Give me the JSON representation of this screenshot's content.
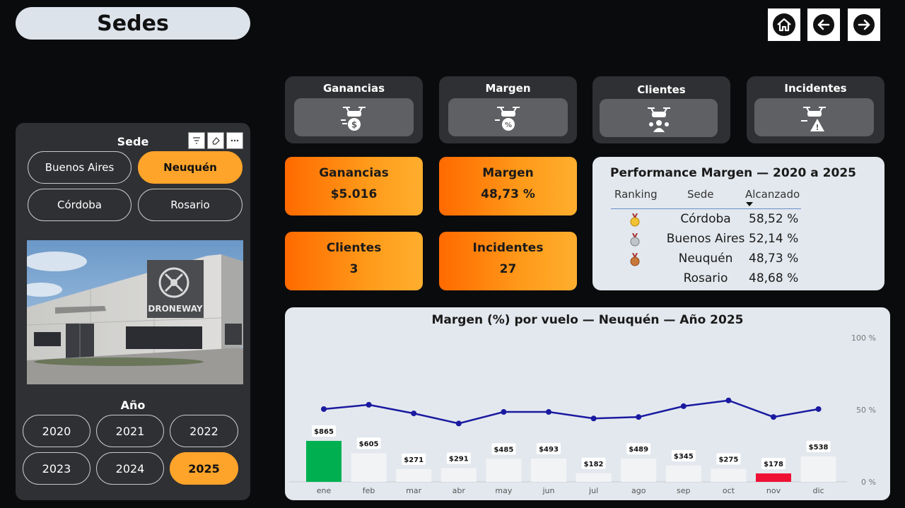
{
  "page_title": "Sedes",
  "kpi_tiles": [
    {
      "label": "Ganancias",
      "icon": "drone-money-icon"
    },
    {
      "label": "Margen",
      "icon": "drone-percent-icon"
    },
    {
      "label": "Clientes",
      "icon": "drone-client-icon"
    },
    {
      "label": "Incidentes",
      "icon": "drone-warning-icon"
    }
  ],
  "kpis": {
    "ganancias": {
      "label": "Ganancias",
      "value": "$5.016"
    },
    "margen": {
      "label": "Margen",
      "value": "48,73 %"
    },
    "clientes": {
      "label": "Clientes",
      "value": "3"
    },
    "incidentes": {
      "label": "Incidentes",
      "value": "27"
    }
  },
  "performance": {
    "title": "Performance Margen — 2020 a 2025",
    "headers": {
      "ranking": "Ranking",
      "sede": "Sede",
      "alcanzado": "Alcanzado"
    },
    "rows": [
      {
        "medal": "gold",
        "sede": "Córdoba",
        "value": "58,52 %"
      },
      {
        "medal": "silver",
        "sede": "Buenos Aires",
        "value": "52,14 %"
      },
      {
        "medal": "bronze",
        "sede": "Neuquén",
        "value": "48,73 %"
      },
      {
        "medal": "",
        "sede": "Rosario",
        "value": "48,68 %"
      }
    ]
  },
  "sede_slicer": {
    "heading": "Sede",
    "options": [
      "Buenos Aires",
      "Neuquén",
      "Córdoba",
      "Rosario"
    ],
    "selected": "Neuquén"
  },
  "building_sign": "DRONEWAY",
  "year_slicer": {
    "heading": "Año",
    "options": [
      "2020",
      "2021",
      "2022",
      "2023",
      "2024",
      "2025"
    ],
    "selected": "2025"
  },
  "chart_data": {
    "type": "bar",
    "title": "Margen (%) por vuelo — Neuquén — Año 2025",
    "categories": [
      "ene",
      "feb",
      "mar",
      "abr",
      "may",
      "jun",
      "jul",
      "ago",
      "sep",
      "oct",
      "nov",
      "dic"
    ],
    "bar_series": {
      "values": [
        865,
        605,
        271,
        291,
        485,
        493,
        182,
        489,
        345,
        275,
        178,
        538
      ],
      "labels": [
        "$865",
        "$605",
        "$271",
        "$291",
        "$485",
        "$493",
        "$182",
        "$489",
        "$345",
        "$275",
        "$178",
        "$538"
      ]
    },
    "line_series": {
      "values": [
        50.5,
        53.5,
        47.5,
        40.5,
        48.5,
        48.5,
        44.0,
        45.0,
        52.5,
        56.5,
        45.0,
        50.5
      ]
    },
    "y2_ticks": [
      "100 %",
      "50 %",
      "0 %"
    ],
    "y2lim": [
      0,
      100
    ],
    "colors": {
      "highlight_max": "#00b050",
      "highlight_min": "#ee1133",
      "bar": "#f2f3f5",
      "line": "#1a1aa0"
    }
  }
}
